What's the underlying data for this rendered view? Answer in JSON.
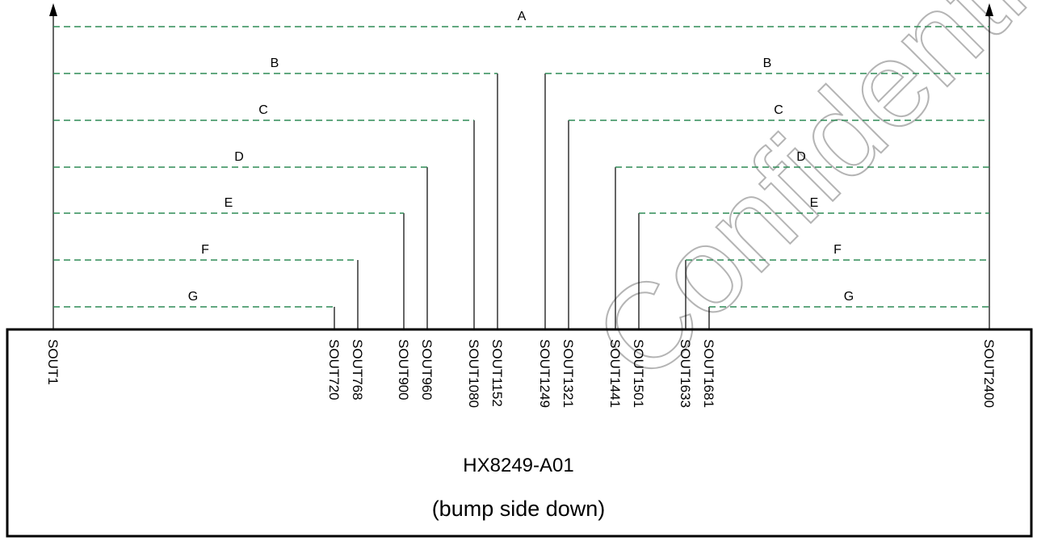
{
  "chip": {
    "name": "HX8249-A01",
    "note": "(bump side down)"
  },
  "watermark": "Confidential",
  "colors": {
    "line": "#000000",
    "dashed": "#2e8b57"
  },
  "pins": [
    "SOUT1",
    "SOUT720",
    "SOUT768",
    "SOUT900",
    "SOUT960",
    "SOUT1080",
    "SOUT1152",
    "SOUT1249",
    "SOUT1321",
    "SOUT1441",
    "SOUT1501",
    "SOUT1633",
    "SOUT1681",
    "SOUT2400"
  ],
  "groups": [
    {
      "label": "A",
      "left_pin": "SOUT1",
      "right_pin": "SOUT2400"
    },
    {
      "label": "B",
      "left_pin": "SOUT1152",
      "right_pin": "SOUT1249"
    },
    {
      "label": "C",
      "left_pin": "SOUT1080",
      "right_pin": "SOUT1321"
    },
    {
      "label": "D",
      "left_pin": "SOUT960",
      "right_pin": "SOUT1441"
    },
    {
      "label": "E",
      "left_pin": "SOUT900",
      "right_pin": "SOUT1501"
    },
    {
      "label": "F",
      "left_pin": "SOUT768",
      "right_pin": "SOUT1633"
    },
    {
      "label": "G",
      "left_pin": "SOUT720",
      "right_pin": "SOUT1681"
    }
  ]
}
